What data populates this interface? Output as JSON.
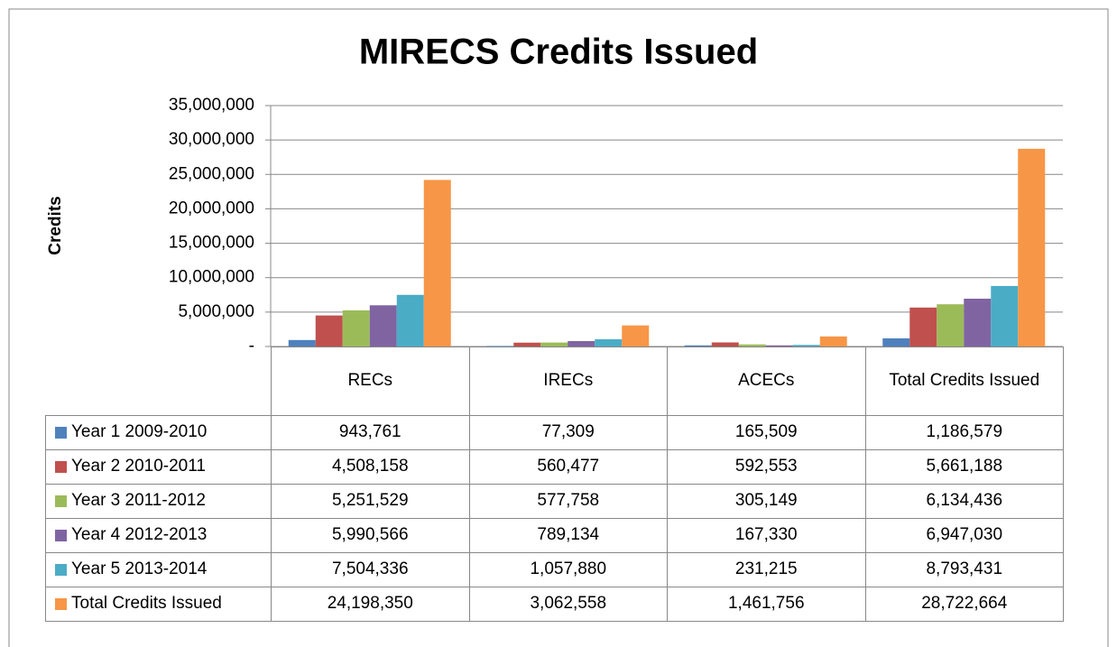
{
  "chart_data": {
    "type": "bar",
    "title": "MIRECS Credits Issued",
    "y_label": "Credits",
    "categories": [
      "RECs",
      "IRECs",
      "ACECs",
      "Total Credits Issued"
    ],
    "series": [
      {
        "name": "Year 1 2009-2010",
        "color": "#4f81bd",
        "values": [
          943761,
          77309,
          165509,
          1186579
        ],
        "value_labels": [
          "943,761",
          "77,309",
          "165,509",
          "1,186,579"
        ]
      },
      {
        "name": "Year 2 2010-2011",
        "color": "#c0504d",
        "values": [
          4508158,
          560477,
          592553,
          5661188
        ],
        "value_labels": [
          "4,508,158",
          "560,477",
          "592,553",
          "5,661,188"
        ]
      },
      {
        "name": "Year 3 2011-2012",
        "color": "#9bbb59",
        "values": [
          5251529,
          577758,
          305149,
          6134436
        ],
        "value_labels": [
          "5,251,529",
          "577,758",
          "305,149",
          "6,134,436"
        ]
      },
      {
        "name": "Year 4 2012-2013",
        "color": "#8064a2",
        "values": [
          5990566,
          789134,
          167330,
          6947030
        ],
        "value_labels": [
          "5,990,566",
          "789,134",
          "167,330",
          "6,947,030"
        ]
      },
      {
        "name": "Year 5 2013-2014",
        "color": "#4bacc6",
        "values": [
          7504336,
          1057880,
          231215,
          8793431
        ],
        "value_labels": [
          "7,504,336",
          "1,057,880",
          "231,215",
          "8,793,431"
        ]
      },
      {
        "name": "Total Credits Issued",
        "color": "#f79646",
        "values": [
          24198350,
          3062558,
          1461756,
          28722664
        ],
        "value_labels": [
          "24,198,350",
          "3,062,558",
          "1,461,756",
          "28,722,664"
        ]
      }
    ],
    "ylim": [
      0,
      35000000
    ],
    "yticks": [
      {
        "value": 0,
        "label": "-"
      },
      {
        "value": 5000000,
        "label": "5,000,000"
      },
      {
        "value": 10000000,
        "label": "10,000,000"
      },
      {
        "value": 15000000,
        "label": "15,000,000"
      },
      {
        "value": 20000000,
        "label": "20,000,000"
      },
      {
        "value": 25000000,
        "label": "25,000,000"
      },
      {
        "value": 30000000,
        "label": "30,000,000"
      },
      {
        "value": 35000000,
        "label": "35,000,000"
      }
    ],
    "grid": true
  }
}
